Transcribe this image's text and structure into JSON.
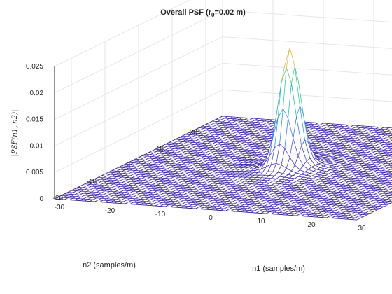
{
  "chart_data": {
    "type": "surface-mesh",
    "title": {
      "prefix": "Overall PSF (r",
      "subscript": "0",
      "suffix": "=0.02 m)"
    },
    "xlabel": "n1 (samples/m)",
    "ylabel": "n2 (samples/m)",
    "zlabel": "|PSF(n1, n2)|",
    "x_range": [
      -30,
      30
    ],
    "y_range": [
      -25,
      25
    ],
    "zlim": [
      0,
      0.025
    ],
    "x_ticks": [
      "-30",
      "-20",
      "-10",
      "0",
      "10",
      "20",
      "30"
    ],
    "y_ticks": [
      "-20",
      "-10",
      "0",
      "10",
      "20"
    ],
    "z_ticks": [
      "0",
      "0.005",
      "0.01",
      "0.015",
      "0.02",
      "0.025"
    ],
    "grid": true,
    "colormap": "parula",
    "peak": {
      "n1": 0,
      "n2": 0,
      "value": 0.0215
    },
    "core_sigma": 1.7,
    "halo": {
      "amplitude": 0.0012,
      "sigma": 4.2
    },
    "colors": {
      "background": "#ffffff",
      "axes_background": "#ffffff",
      "grid": "#e6e6e6",
      "axis_line": "#262626",
      "text": "#262626",
      "mesh_low": "#3d26a8",
      "mesh_high": "#f9fb0e"
    }
  }
}
